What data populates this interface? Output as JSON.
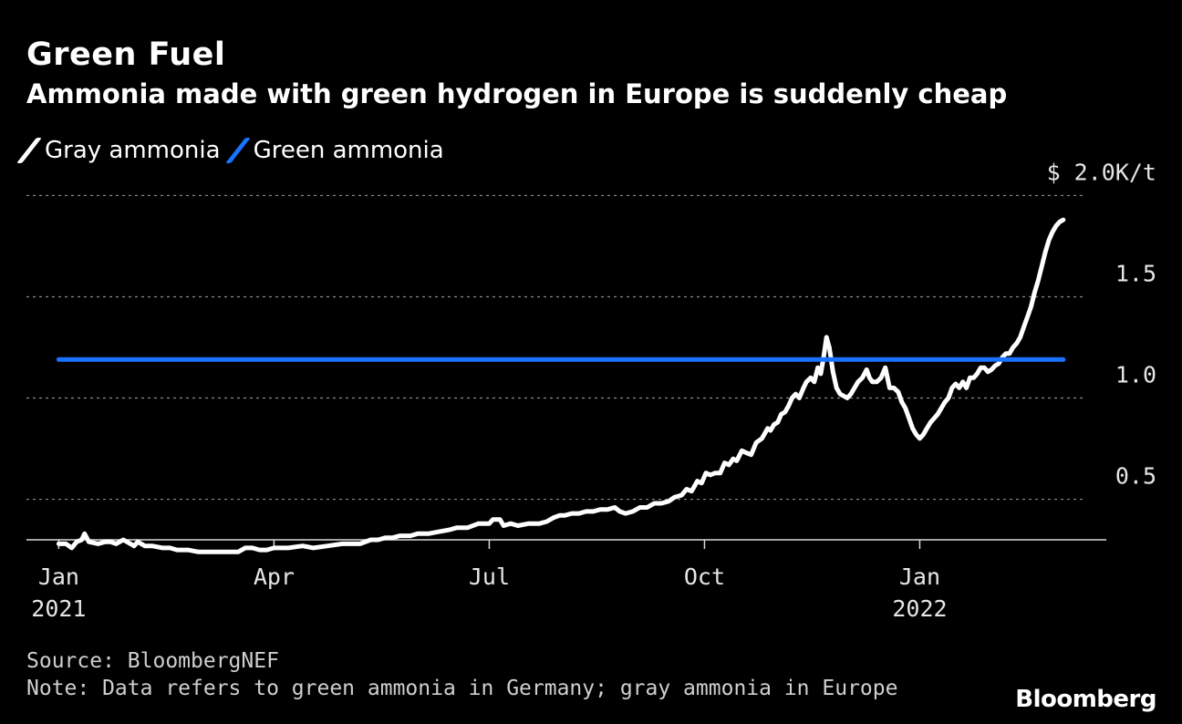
{
  "title": "Green Fuel",
  "subtitle": "Ammonia made with green hydrogen in Europe is suddenly cheap",
  "legend": [
    {
      "label": "Gray ammonia",
      "color": "#ffffff"
    },
    {
      "label": "Green ammonia",
      "color": "#1a73ff"
    }
  ],
  "footer": {
    "source": "Source: BloombergNEF",
    "note": "Note: Data refers to green ammonia in Germany; gray ammonia in Europe",
    "brand": "Bloomberg"
  },
  "chart_data": {
    "type": "line",
    "title": "Green Fuel",
    "subtitle": "Ammonia made with green hydrogen in Europe is suddenly cheap",
    "unit": "$K/t",
    "ylim": [
      0.3,
      2.2
    ],
    "y_ticks": [
      {
        "value": 0.5,
        "label": "0.5"
      },
      {
        "value": 1.0,
        "label": "1.0"
      },
      {
        "value": 1.5,
        "label": "1.5"
      },
      {
        "value": 2.0,
        "label": "$ 2.0K/t"
      }
    ],
    "x_ticks": [
      {
        "month": 0,
        "line1": "Jan",
        "line2": "2021"
      },
      {
        "month": 3,
        "line1": "Apr",
        "line2": ""
      },
      {
        "month": 6,
        "line1": "Jul",
        "line2": ""
      },
      {
        "month": 9,
        "line1": "Oct",
        "line2": ""
      },
      {
        "month": 12,
        "line1": "Jan",
        "line2": "2022"
      }
    ],
    "xlim": [
      -0.45,
      14.6
    ],
    "grid": true,
    "series": [
      {
        "name": "Gray ammonia",
        "color": "#ffffff",
        "points": [
          [
            0.0,
            0.28
          ],
          [
            0.1,
            0.28
          ],
          [
            0.18,
            0.26
          ],
          [
            0.25,
            0.29
          ],
          [
            0.32,
            0.3
          ],
          [
            0.36,
            0.33
          ],
          [
            0.42,
            0.29
          ],
          [
            0.55,
            0.28
          ],
          [
            0.65,
            0.29
          ],
          [
            0.72,
            0.29
          ],
          [
            0.8,
            0.28
          ],
          [
            0.9,
            0.3
          ],
          [
            1.0,
            0.28
          ],
          [
            1.05,
            0.27
          ],
          [
            1.1,
            0.29
          ],
          [
            1.2,
            0.27
          ],
          [
            1.3,
            0.27
          ],
          [
            1.45,
            0.26
          ],
          [
            1.55,
            0.26
          ],
          [
            1.65,
            0.25
          ],
          [
            1.8,
            0.25
          ],
          [
            1.95,
            0.24
          ],
          [
            2.1,
            0.24
          ],
          [
            2.3,
            0.24
          ],
          [
            2.5,
            0.24
          ],
          [
            2.6,
            0.26
          ],
          [
            2.7,
            0.26
          ],
          [
            2.8,
            0.25
          ],
          [
            2.9,
            0.25
          ],
          [
            3.0,
            0.26
          ],
          [
            3.2,
            0.26
          ],
          [
            3.4,
            0.27
          ],
          [
            3.55,
            0.26
          ],
          [
            3.75,
            0.27
          ],
          [
            3.95,
            0.28
          ],
          [
            4.05,
            0.28
          ],
          [
            4.2,
            0.28
          ],
          [
            4.35,
            0.3
          ],
          [
            4.45,
            0.3
          ],
          [
            4.55,
            0.31
          ],
          [
            4.65,
            0.31
          ],
          [
            4.75,
            0.32
          ],
          [
            4.9,
            0.32
          ],
          [
            5.0,
            0.33
          ],
          [
            5.15,
            0.33
          ],
          [
            5.3,
            0.34
          ],
          [
            5.45,
            0.35
          ],
          [
            5.55,
            0.36
          ],
          [
            5.7,
            0.36
          ],
          [
            5.85,
            0.38
          ],
          [
            6.0,
            0.38
          ],
          [
            6.05,
            0.4
          ],
          [
            6.15,
            0.4
          ],
          [
            6.2,
            0.37
          ],
          [
            6.3,
            0.38
          ],
          [
            6.4,
            0.37
          ],
          [
            6.55,
            0.38
          ],
          [
            6.7,
            0.38
          ],
          [
            6.8,
            0.39
          ],
          [
            6.9,
            0.41
          ],
          [
            6.98,
            0.42
          ],
          [
            7.05,
            0.42
          ],
          [
            7.15,
            0.43
          ],
          [
            7.25,
            0.43
          ],
          [
            7.35,
            0.44
          ],
          [
            7.45,
            0.44
          ],
          [
            7.55,
            0.45
          ],
          [
            7.65,
            0.45
          ],
          [
            7.75,
            0.46
          ],
          [
            7.82,
            0.44
          ],
          [
            7.9,
            0.43
          ],
          [
            8.0,
            0.44
          ],
          [
            8.1,
            0.46
          ],
          [
            8.2,
            0.46
          ],
          [
            8.3,
            0.48
          ],
          [
            8.4,
            0.48
          ],
          [
            8.5,
            0.49
          ],
          [
            8.58,
            0.51
          ],
          [
            8.68,
            0.52
          ],
          [
            8.75,
            0.55
          ],
          [
            8.82,
            0.54
          ],
          [
            8.9,
            0.59
          ],
          [
            8.96,
            0.58
          ],
          [
            9.02,
            0.63
          ],
          [
            9.08,
            0.62
          ],
          [
            9.15,
            0.63
          ],
          [
            9.22,
            0.63
          ],
          [
            9.28,
            0.68
          ],
          [
            9.34,
            0.67
          ],
          [
            9.4,
            0.7
          ],
          [
            9.45,
            0.69
          ],
          [
            9.52,
            0.74
          ],
          [
            9.58,
            0.73
          ],
          [
            9.65,
            0.72
          ],
          [
            9.72,
            0.78
          ],
          [
            9.8,
            0.8
          ],
          [
            9.88,
            0.85
          ],
          [
            9.92,
            0.84
          ],
          [
            9.97,
            0.87
          ],
          [
            10.02,
            0.88
          ],
          [
            10.07,
            0.92
          ],
          [
            10.12,
            0.93
          ],
          [
            10.17,
            0.96
          ],
          [
            10.22,
            1.0
          ],
          [
            10.27,
            1.02
          ],
          [
            10.32,
            1.0
          ],
          [
            10.38,
            1.05
          ],
          [
            10.42,
            1.08
          ],
          [
            10.48,
            1.1
          ],
          [
            10.53,
            1.08
          ],
          [
            10.58,
            1.15
          ],
          [
            10.62,
            1.12
          ],
          [
            10.66,
            1.2
          ],
          [
            10.7,
            1.3
          ],
          [
            10.74,
            1.25
          ],
          [
            10.79,
            1.13
          ],
          [
            10.84,
            1.05
          ],
          [
            10.89,
            1.02
          ],
          [
            10.94,
            1.01
          ],
          [
            10.99,
            1.0
          ],
          [
            11.04,
            1.02
          ],
          [
            11.09,
            1.05
          ],
          [
            11.14,
            1.08
          ],
          [
            11.2,
            1.1
          ],
          [
            11.26,
            1.14
          ],
          [
            11.3,
            1.1
          ],
          [
            11.34,
            1.08
          ],
          [
            11.4,
            1.08
          ],
          [
            11.46,
            1.1
          ],
          [
            11.52,
            1.15
          ],
          [
            11.58,
            1.05
          ],
          [
            11.64,
            1.05
          ],
          [
            11.7,
            1.03
          ],
          [
            11.75,
            0.98
          ],
          [
            11.8,
            0.95
          ],
          [
            11.85,
            0.9
          ],
          [
            11.9,
            0.85
          ],
          [
            11.95,
            0.82
          ],
          [
            12.0,
            0.8
          ],
          [
            12.05,
            0.82
          ],
          [
            12.1,
            0.85
          ],
          [
            12.15,
            0.88
          ],
          [
            12.2,
            0.9
          ],
          [
            12.25,
            0.92
          ],
          [
            12.3,
            0.95
          ],
          [
            12.35,
            0.98
          ],
          [
            12.4,
            1.0
          ],
          [
            12.45,
            1.05
          ],
          [
            12.5,
            1.07
          ],
          [
            12.55,
            1.05
          ],
          [
            12.6,
            1.08
          ],
          [
            12.65,
            1.05
          ],
          [
            12.7,
            1.1
          ],
          [
            12.75,
            1.1
          ],
          [
            12.8,
            1.12
          ],
          [
            12.85,
            1.15
          ],
          [
            12.9,
            1.15
          ],
          [
            12.95,
            1.13
          ],
          [
            13.0,
            1.14
          ],
          [
            13.05,
            1.16
          ],
          [
            13.1,
            1.17
          ],
          [
            13.15,
            1.2
          ],
          [
            13.2,
            1.22
          ],
          [
            13.25,
            1.22
          ],
          [
            13.3,
            1.25
          ],
          [
            13.35,
            1.27
          ],
          [
            13.4,
            1.3
          ],
          [
            13.45,
            1.35
          ],
          [
            13.5,
            1.4
          ],
          [
            13.55,
            1.45
          ],
          [
            13.6,
            1.52
          ],
          [
            13.65,
            1.58
          ],
          [
            13.7,
            1.65
          ],
          [
            13.75,
            1.72
          ],
          [
            13.8,
            1.78
          ],
          [
            13.85,
            1.82
          ],
          [
            13.9,
            1.85
          ],
          [
            13.95,
            1.87
          ],
          [
            14.0,
            1.88
          ]
        ]
      },
      {
        "name": "Green ammonia",
        "color": "#1a73ff",
        "points": [
          [
            0.0,
            1.19
          ],
          [
            14.0,
            1.19
          ]
        ]
      }
    ]
  }
}
